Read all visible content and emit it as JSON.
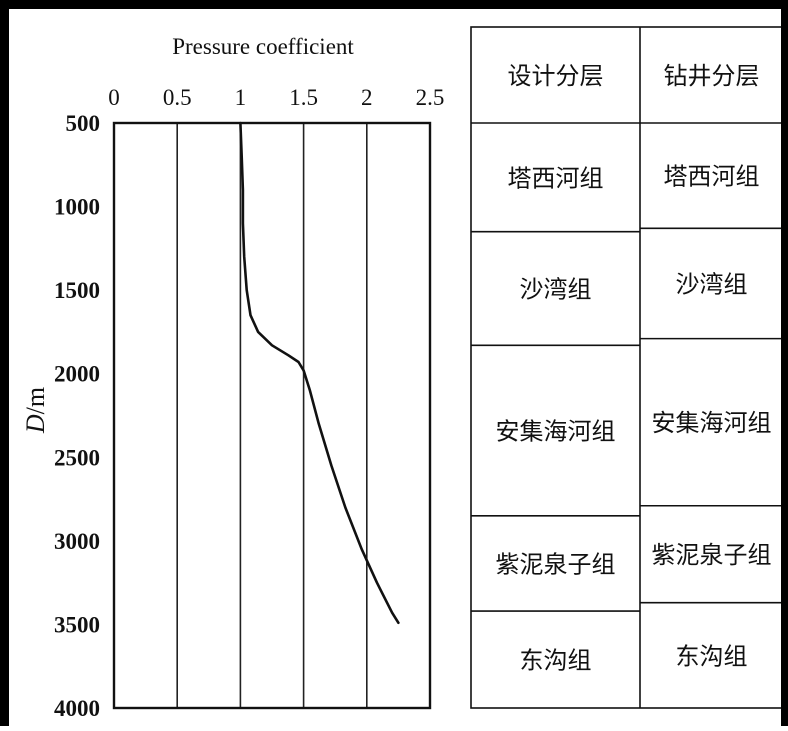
{
  "chart_data": {
    "type": "line",
    "title": "Pressure coefficient",
    "xlabel": "Pressure coefficient",
    "ylabel": "D/m",
    "ylabel_italic_part": "D",
    "ylabel_unit_part": "/m",
    "xlim": [
      0,
      2.5
    ],
    "ylim": [
      500,
      4000
    ],
    "y_inverted": true,
    "x_ticks": [
      "0",
      "0.5",
      "1",
      "1.5",
      "2",
      "2.5"
    ],
    "x_tick_values": [
      0,
      0.5,
      1,
      1.5,
      2,
      2.5
    ],
    "y_ticks": [
      "500",
      "1000",
      "1500",
      "2000",
      "2500",
      "3000",
      "3500",
      "4000"
    ],
    "y_tick_values": [
      500,
      1000,
      1500,
      2000,
      2500,
      3000,
      3500,
      4000
    ],
    "vertical_gridlines_at": [
      0.5,
      1,
      1.5,
      2
    ],
    "grid": "vertical only",
    "series": [
      {
        "color": "#111111",
        "points": [
          [
            1.0,
            500
          ],
          [
            1.01,
            700
          ],
          [
            1.02,
            900
          ],
          [
            1.02,
            1100
          ],
          [
            1.03,
            1300
          ],
          [
            1.05,
            1500
          ],
          [
            1.08,
            1650
          ],
          [
            1.14,
            1750
          ],
          [
            1.25,
            1830
          ],
          [
            1.38,
            1890
          ],
          [
            1.46,
            1930
          ],
          [
            1.5,
            1980
          ],
          [
            1.55,
            2100
          ],
          [
            1.62,
            2300
          ],
          [
            1.72,
            2550
          ],
          [
            1.83,
            2800
          ],
          [
            1.96,
            3050
          ],
          [
            2.08,
            3250
          ],
          [
            2.2,
            3430
          ],
          [
            2.25,
            3490
          ]
        ]
      }
    ]
  },
  "strata_table": {
    "columns": [
      {
        "header": "设计分层",
        "layers": [
          {
            "name": "塔西河组",
            "top": 500,
            "bottom": 1150
          },
          {
            "name": "沙湾组",
            "top": 1150,
            "bottom": 1830
          },
          {
            "name": "安集海河组",
            "top": 1830,
            "bottom": 2850
          },
          {
            "name": "紫泥泉子组",
            "top": 2850,
            "bottom": 3420
          },
          {
            "name": "东沟组",
            "top": 3420,
            "bottom": 4000
          }
        ]
      },
      {
        "header": "钻井分层",
        "layers": [
          {
            "name": "塔西河组",
            "top": 500,
            "bottom": 1130
          },
          {
            "name": "沙湾组",
            "top": 1130,
            "bottom": 1790
          },
          {
            "name": "安集海河组",
            "top": 1790,
            "bottom": 2790
          },
          {
            "name": "紫泥泉子组",
            "top": 2790,
            "bottom": 3370
          },
          {
            "name": "东沟组",
            "top": 3370,
            "bottom": 4000
          }
        ]
      }
    ]
  }
}
